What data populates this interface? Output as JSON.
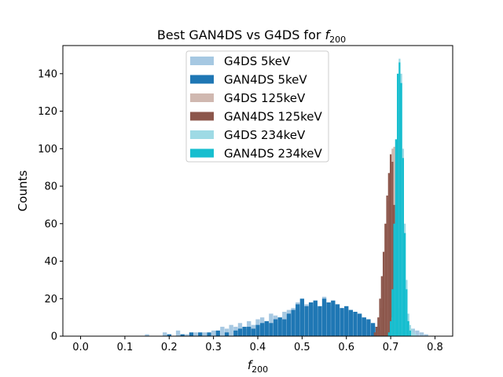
{
  "chart_data": {
    "type": "bar",
    "title_main": "Best GAN4DS vs G4DS for ",
    "title_var": "f",
    "title_sub": "200",
    "xlabel_var": "f",
    "xlabel_sub": "200",
    "ylabel": "Counts",
    "xlim": [
      -0.04,
      0.84
    ],
    "ylim": [
      0,
      155
    ],
    "xticks": [
      "0.0",
      "0.1",
      "0.2",
      "0.3",
      "0.4",
      "0.5",
      "0.6",
      "0.7",
      "0.8"
    ],
    "yticks": [
      "0",
      "20",
      "40",
      "60",
      "80",
      "100",
      "120",
      "140"
    ],
    "legend_position": "top-center",
    "series": [
      {
        "name": "G4DS 5keV",
        "color": "#a6c8e2",
        "bins": [
          {
            "x": 0.15,
            "y": 1
          },
          {
            "x": 0.19,
            "y": 2
          },
          {
            "x": 0.22,
            "y": 3
          },
          {
            "x": 0.24,
            "y": 1
          },
          {
            "x": 0.26,
            "y": 2
          },
          {
            "x": 0.28,
            "y": 2
          },
          {
            "x": 0.3,
            "y": 3
          },
          {
            "x": 0.32,
            "y": 5
          },
          {
            "x": 0.33,
            "y": 4
          },
          {
            "x": 0.34,
            "y": 6
          },
          {
            "x": 0.35,
            "y": 5
          },
          {
            "x": 0.36,
            "y": 7
          },
          {
            "x": 0.37,
            "y": 4
          },
          {
            "x": 0.38,
            "y": 8
          },
          {
            "x": 0.39,
            "y": 6
          },
          {
            "x": 0.4,
            "y": 9
          },
          {
            "x": 0.41,
            "y": 10
          },
          {
            "x": 0.42,
            "y": 8
          },
          {
            "x": 0.43,
            "y": 12
          },
          {
            "x": 0.44,
            "y": 11
          },
          {
            "x": 0.45,
            "y": 10
          },
          {
            "x": 0.46,
            "y": 13
          },
          {
            "x": 0.47,
            "y": 14
          },
          {
            "x": 0.48,
            "y": 15
          },
          {
            "x": 0.49,
            "y": 18
          },
          {
            "x": 0.5,
            "y": 13
          },
          {
            "x": 0.51,
            "y": 17
          },
          {
            "x": 0.52,
            "y": 16
          },
          {
            "x": 0.53,
            "y": 19
          },
          {
            "x": 0.54,
            "y": 15
          },
          {
            "x": 0.55,
            "y": 21
          },
          {
            "x": 0.56,
            "y": 17
          },
          {
            "x": 0.57,
            "y": 16
          },
          {
            "x": 0.58,
            "y": 17
          },
          {
            "x": 0.59,
            "y": 14
          },
          {
            "x": 0.6,
            "y": 15
          },
          {
            "x": 0.61,
            "y": 13
          },
          {
            "x": 0.62,
            "y": 12
          },
          {
            "x": 0.63,
            "y": 11
          },
          {
            "x": 0.64,
            "y": 9
          },
          {
            "x": 0.65,
            "y": 8
          },
          {
            "x": 0.66,
            "y": 6
          },
          {
            "x": 0.67,
            "y": 3
          },
          {
            "x": 0.74,
            "y": 5
          },
          {
            "x": 0.75,
            "y": 4
          },
          {
            "x": 0.76,
            "y": 3
          },
          {
            "x": 0.77,
            "y": 2
          },
          {
            "x": 0.78,
            "y": 1
          }
        ]
      },
      {
        "name": "GAN4DS 5keV",
        "color": "#1f77b4",
        "bins": [
          {
            "x": 0.2,
            "y": 1
          },
          {
            "x": 0.23,
            "y": 1
          },
          {
            "x": 0.25,
            "y": 2
          },
          {
            "x": 0.27,
            "y": 2
          },
          {
            "x": 0.29,
            "y": 2
          },
          {
            "x": 0.31,
            "y": 3
          },
          {
            "x": 0.33,
            "y": 2
          },
          {
            "x": 0.35,
            "y": 3
          },
          {
            "x": 0.36,
            "y": 4
          },
          {
            "x": 0.37,
            "y": 5
          },
          {
            "x": 0.38,
            "y": 5
          },
          {
            "x": 0.39,
            "y": 4
          },
          {
            "x": 0.4,
            "y": 6
          },
          {
            "x": 0.41,
            "y": 7
          },
          {
            "x": 0.42,
            "y": 8
          },
          {
            "x": 0.43,
            "y": 7
          },
          {
            "x": 0.44,
            "y": 9
          },
          {
            "x": 0.45,
            "y": 10
          },
          {
            "x": 0.46,
            "y": 9
          },
          {
            "x": 0.47,
            "y": 12
          },
          {
            "x": 0.48,
            "y": 14
          },
          {
            "x": 0.49,
            "y": 17
          },
          {
            "x": 0.5,
            "y": 20
          },
          {
            "x": 0.51,
            "y": 16
          },
          {
            "x": 0.52,
            "y": 18
          },
          {
            "x": 0.53,
            "y": 19
          },
          {
            "x": 0.54,
            "y": 16
          },
          {
            "x": 0.55,
            "y": 20
          },
          {
            "x": 0.56,
            "y": 18
          },
          {
            "x": 0.57,
            "y": 19
          },
          {
            "x": 0.58,
            "y": 17
          },
          {
            "x": 0.59,
            "y": 15
          },
          {
            "x": 0.6,
            "y": 16
          },
          {
            "x": 0.61,
            "y": 14
          },
          {
            "x": 0.62,
            "y": 13
          },
          {
            "x": 0.63,
            "y": 12
          },
          {
            "x": 0.64,
            "y": 10
          },
          {
            "x": 0.65,
            "y": 9
          },
          {
            "x": 0.66,
            "y": 7
          },
          {
            "x": 0.67,
            "y": 5
          },
          {
            "x": 0.68,
            "y": 3
          },
          {
            "x": 0.69,
            "y": 2
          }
        ]
      },
      {
        "name": "G4DS 125keV",
        "color": "#d0b8b0",
        "bins": [
          {
            "x": 0.672,
            "y": 3
          },
          {
            "x": 0.676,
            "y": 8
          },
          {
            "x": 0.68,
            "y": 15
          },
          {
            "x": 0.684,
            "y": 25
          },
          {
            "x": 0.688,
            "y": 35
          },
          {
            "x": 0.692,
            "y": 52
          },
          {
            "x": 0.696,
            "y": 72
          },
          {
            "x": 0.7,
            "y": 90
          },
          {
            "x": 0.704,
            "y": 100
          },
          {
            "x": 0.708,
            "y": 101
          },
          {
            "x": 0.712,
            "y": 70
          },
          {
            "x": 0.716,
            "y": 40
          },
          {
            "x": 0.72,
            "y": 15
          },
          {
            "x": 0.724,
            "y": 5
          }
        ]
      },
      {
        "name": "GAN4DS 125keV",
        "color": "#8c564b",
        "bins": [
          {
            "x": 0.664,
            "y": 2
          },
          {
            "x": 0.668,
            "y": 5
          },
          {
            "x": 0.672,
            "y": 10
          },
          {
            "x": 0.676,
            "y": 20
          },
          {
            "x": 0.68,
            "y": 32
          },
          {
            "x": 0.684,
            "y": 45
          },
          {
            "x": 0.688,
            "y": 60
          },
          {
            "x": 0.692,
            "y": 75
          },
          {
            "x": 0.696,
            "y": 87
          },
          {
            "x": 0.7,
            "y": 97
          },
          {
            "x": 0.704,
            "y": 93
          },
          {
            "x": 0.708,
            "y": 70
          },
          {
            "x": 0.712,
            "y": 40
          },
          {
            "x": 0.716,
            "y": 15
          },
          {
            "x": 0.72,
            "y": 4
          }
        ]
      },
      {
        "name": "G4DS 234keV",
        "color": "#9edae5",
        "bins": [
          {
            "x": 0.7,
            "y": 3
          },
          {
            "x": 0.704,
            "y": 10
          },
          {
            "x": 0.708,
            "y": 30
          },
          {
            "x": 0.712,
            "y": 70
          },
          {
            "x": 0.716,
            "y": 120
          },
          {
            "x": 0.72,
            "y": 148
          },
          {
            "x": 0.724,
            "y": 140
          },
          {
            "x": 0.728,
            "y": 100
          },
          {
            "x": 0.732,
            "y": 60
          },
          {
            "x": 0.736,
            "y": 30
          },
          {
            "x": 0.74,
            "y": 12
          },
          {
            "x": 0.744,
            "y": 6
          },
          {
            "x": 0.748,
            "y": 4
          },
          {
            "x": 0.752,
            "y": 2
          },
          {
            "x": 0.756,
            "y": 1
          }
        ]
      },
      {
        "name": "GAN4DS 234keV",
        "color": "#17becf",
        "bins": [
          {
            "x": 0.696,
            "y": 2
          },
          {
            "x": 0.7,
            "y": 8
          },
          {
            "x": 0.704,
            "y": 25
          },
          {
            "x": 0.708,
            "y": 60
          },
          {
            "x": 0.712,
            "y": 105
          },
          {
            "x": 0.716,
            "y": 140
          },
          {
            "x": 0.72,
            "y": 146
          },
          {
            "x": 0.724,
            "y": 135
          },
          {
            "x": 0.728,
            "y": 95
          },
          {
            "x": 0.732,
            "y": 55
          },
          {
            "x": 0.736,
            "y": 25
          },
          {
            "x": 0.74,
            "y": 8
          },
          {
            "x": 0.744,
            "y": 3
          }
        ]
      }
    ]
  }
}
